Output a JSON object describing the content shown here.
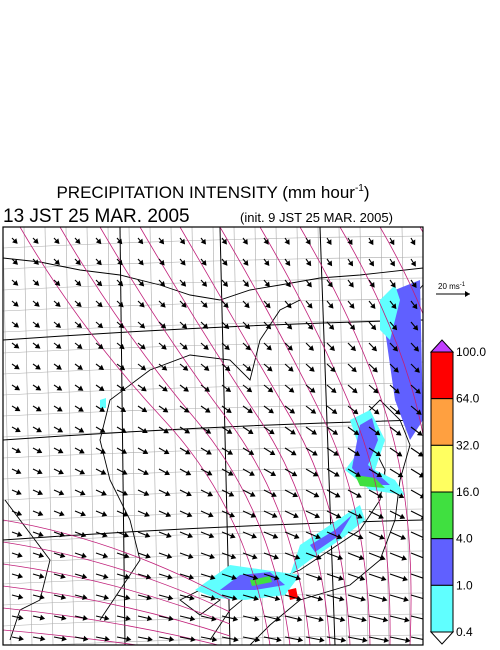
{
  "header": {
    "title": "PRECIPITATION INTENSITY (mm hour",
    "title_sup": "-1",
    "title_end": ")",
    "time": "13 JST 25 MAR. 2005",
    "init": "(init. 9 JST 25 MAR. 2005)"
  },
  "reference_vector": {
    "label": "20 ms",
    "label_sup": "-1"
  },
  "colorbar": {
    "labels": [
      "100.0",
      "64.0",
      "32.0",
      "16.0",
      "4.0",
      "1.0",
      "0.4"
    ],
    "colors": [
      "#ff0000",
      "#ffa040",
      "#ffff60",
      "#40e040",
      "#6060ff",
      "#60ffff"
    ],
    "over_color": "#c040ff",
    "under_color": "#ffffff"
  }
}
